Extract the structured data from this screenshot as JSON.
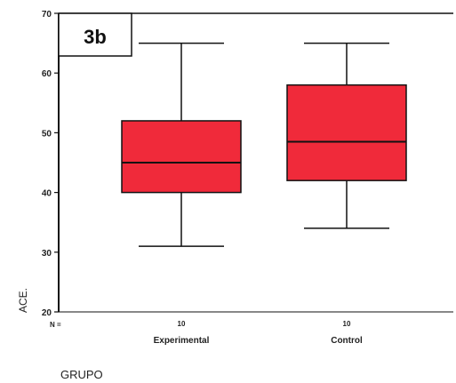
{
  "chart_data": {
    "type": "box",
    "panel_label": "3b",
    "ylabel": "ACE.",
    "xlabel": "GRUPO",
    "ylim": [
      20,
      70
    ],
    "yticks": [
      20,
      30,
      40,
      50,
      60,
      70
    ],
    "n_prefix": "N =",
    "categories": [
      "Experimental",
      "Control"
    ],
    "n": [
      "10",
      "10"
    ],
    "boxes": [
      {
        "category": "Experimental",
        "min": 31,
        "q1": 40,
        "median": 45,
        "q3": 52,
        "max": 65
      },
      {
        "category": "Control",
        "min": 34,
        "q1": 42,
        "median": 48.5,
        "q3": 58,
        "max": 65
      }
    ],
    "box_color": "#f02a3a",
    "grid": false
  }
}
